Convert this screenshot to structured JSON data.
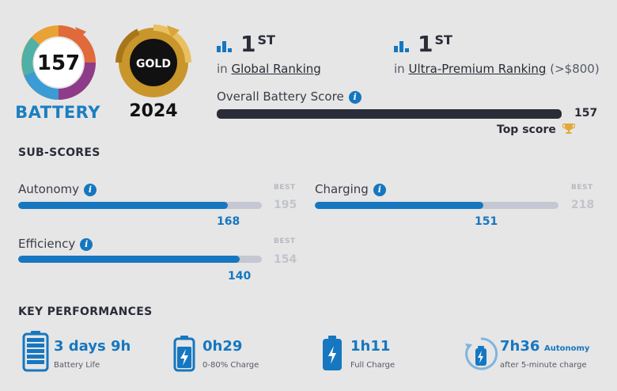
{
  "badge": {
    "score": "157",
    "label": "BATTERY",
    "gold_text": "GOLD",
    "year": "2024"
  },
  "rankings": [
    {
      "position": "1",
      "suffix": "ST",
      "prefix": "in",
      "link": "Global Ranking",
      "note": ""
    },
    {
      "position": "1",
      "suffix": "ST",
      "prefix": "in",
      "link": "Ultra-Premium Ranking",
      "note": "(>$800)"
    }
  ],
  "overall": {
    "label": "Overall Battery Score",
    "value": "157",
    "fraction": 1.0,
    "top_score_label": "Top score"
  },
  "subscores": {
    "title": "SUB-SCORES",
    "best_label": "BEST",
    "items": [
      {
        "label": "Autonomy",
        "value": "168",
        "best": "195",
        "fraction": 0.862
      },
      {
        "label": "Charging",
        "value": "151",
        "best": "218",
        "fraction": 0.693
      },
      {
        "label": "Efficiency",
        "value": "140",
        "best": "154",
        "fraction": 0.909
      }
    ]
  },
  "key_performances": {
    "title": "KEY PERFORMANCES",
    "items": [
      {
        "value": "3 days 9h",
        "caption": "Battery Life",
        "tag": ""
      },
      {
        "value": "0h29",
        "caption": "0-80% Charge",
        "tag": ""
      },
      {
        "value": "1h11",
        "caption": "Full Charge",
        "tag": ""
      },
      {
        "value": "7h36",
        "caption": "after 5-minute charge",
        "tag": "Autonomy"
      }
    ]
  },
  "colors": {
    "accent": "#1677c0",
    "dark": "#2a2d38",
    "track": "#c5c7d2",
    "gold": "#c8962a"
  }
}
